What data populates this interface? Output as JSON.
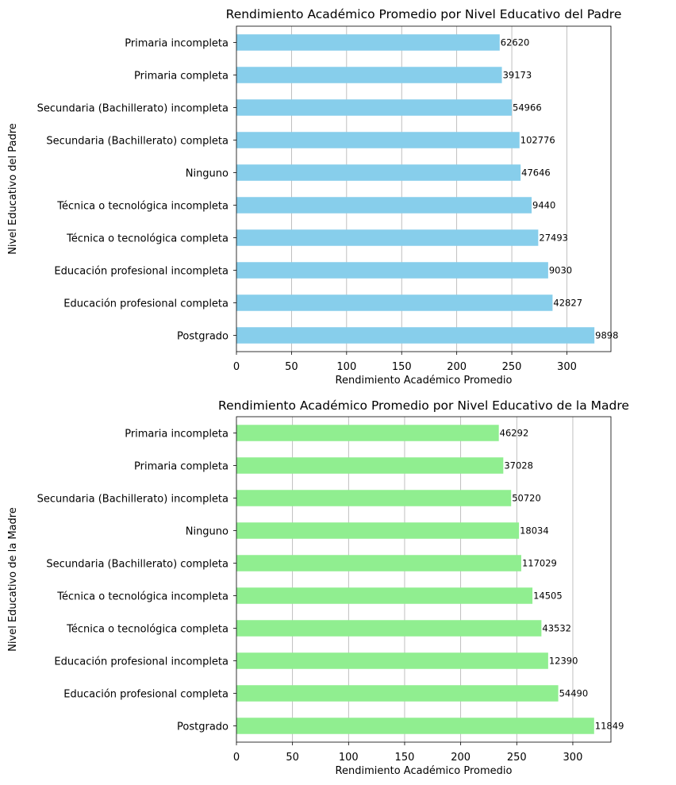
{
  "chart_data": [
    {
      "type": "bar",
      "orientation": "horizontal",
      "title": "Rendimiento Académico Promedio por Nivel Educativo del Padre",
      "xlabel": "Rendimiento Académico Promedio",
      "ylabel": "Nivel Educativo del Padre",
      "xlim": [
        0,
        340
      ],
      "xticks": [
        "0",
        "50",
        "100",
        "150",
        "200",
        "250",
        "300"
      ],
      "grid": "x",
      "bar_color": "#87CEEB",
      "categories": [
        "Primaria incompleta",
        "Primaria completa",
        "Secundaria (Bachillerato) incompleta",
        "Secundaria (Bachillerato) completa",
        "Ninguno",
        "Técnica o tecnológica incompleta",
        "Técnica o tecnológica completa",
        "Educación profesional incompleta",
        "Educación profesional completa",
        "Postgrado"
      ],
      "values": [
        239,
        241,
        250,
        257,
        258,
        268,
        274,
        283,
        287,
        325
      ],
      "bar_labels": [
        "62620",
        "39173",
        "54966",
        "102776",
        "47646",
        "9440",
        "27493",
        "9030",
        "42827",
        "9898"
      ]
    },
    {
      "type": "bar",
      "orientation": "horizontal",
      "title": "Rendimiento Académico Promedio por Nivel Educativo de la Madre",
      "xlabel": "Rendimiento Académico Promedio",
      "ylabel": "Nivel Educativo de la Madre",
      "xlim": [
        0,
        334
      ],
      "xticks": [
        "0",
        "50",
        "100",
        "150",
        "200",
        "250",
        "300"
      ],
      "grid": "x",
      "bar_color": "#90EE90",
      "categories": [
        "Primaria incompleta",
        "Primaria completa",
        "Secundaria (Bachillerato) incompleta",
        "Ninguno",
        "Secundaria (Bachillerato) completa",
        "Técnica o tecnológica incompleta",
        "Técnica o tecnológica completa",
        "Educación profesional incompleta",
        "Educación profesional completa",
        "Postgrado"
      ],
      "values": [
        234,
        238,
        245,
        252,
        254,
        264,
        272,
        278,
        287,
        319
      ],
      "bar_labels": [
        "46292",
        "37028",
        "50720",
        "18034",
        "117029",
        "14505",
        "43532",
        "12390",
        "54490",
        "11849"
      ]
    }
  ]
}
